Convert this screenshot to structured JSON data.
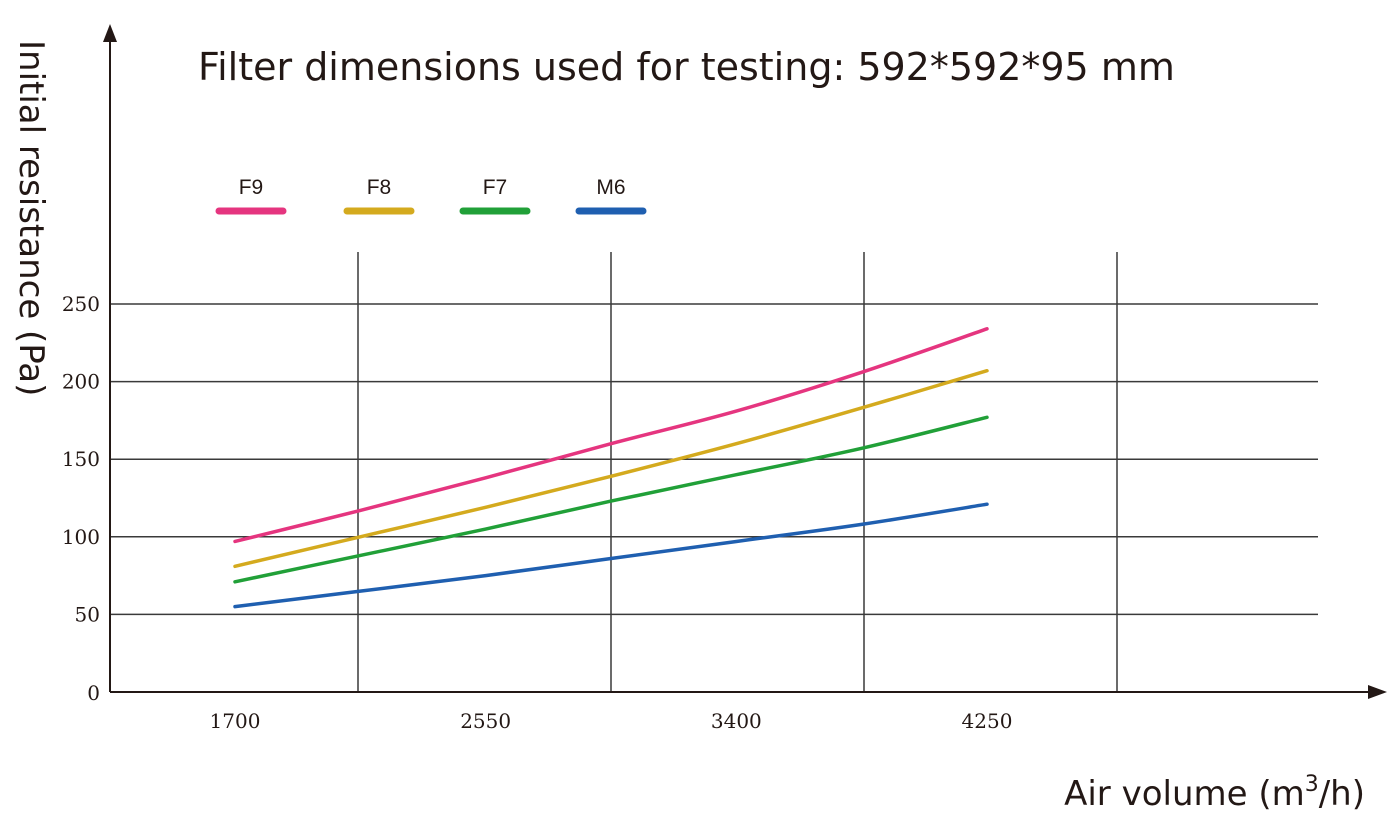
{
  "chart_data": {
    "type": "line",
    "title": "Filter dimensions used for testing: 592*592*95 mm",
    "ylabel": "Initial resistance (Pa)",
    "xlabel": "Air volume (m³/h)",
    "xlabel_main": "Air volume (m",
    "xlabel_sup": "3",
    "xlabel_end": "/h)",
    "x_ticks": [
      "1700",
      "2550",
      "3400",
      "4250"
    ],
    "y_ticks": [
      "0",
      "50",
      "100",
      "150",
      "200",
      "250"
    ],
    "ylim": [
      0,
      250
    ],
    "grid": true,
    "legend_position": "top-left",
    "series": [
      {
        "name": "F9",
        "color": "#e5357f",
        "x": [
          1700,
          2125,
          2550,
          2975,
          3400,
          3825,
          4250
        ],
        "y": [
          97,
          117,
          138,
          160,
          181,
          206,
          234
        ]
      },
      {
        "name": "F8",
        "color": "#d4aa1e",
        "x": [
          1700,
          2125,
          2550,
          2975,
          3400,
          3825,
          4250
        ],
        "y": [
          81,
          100,
          119,
          139,
          160,
          183,
          207
        ]
      },
      {
        "name": "F7",
        "color": "#21a038",
        "x": [
          1700,
          2125,
          2550,
          2975,
          3400,
          3825,
          4250
        ],
        "y": [
          71,
          88,
          105,
          123,
          140,
          157,
          177
        ]
      },
      {
        "name": "M6",
        "color": "#1f5fb0",
        "x": [
          1700,
          2125,
          2550,
          2975,
          3400,
          3825,
          4250
        ],
        "y": [
          55,
          65,
          75,
          86,
          97,
          108,
          121
        ]
      }
    ]
  }
}
